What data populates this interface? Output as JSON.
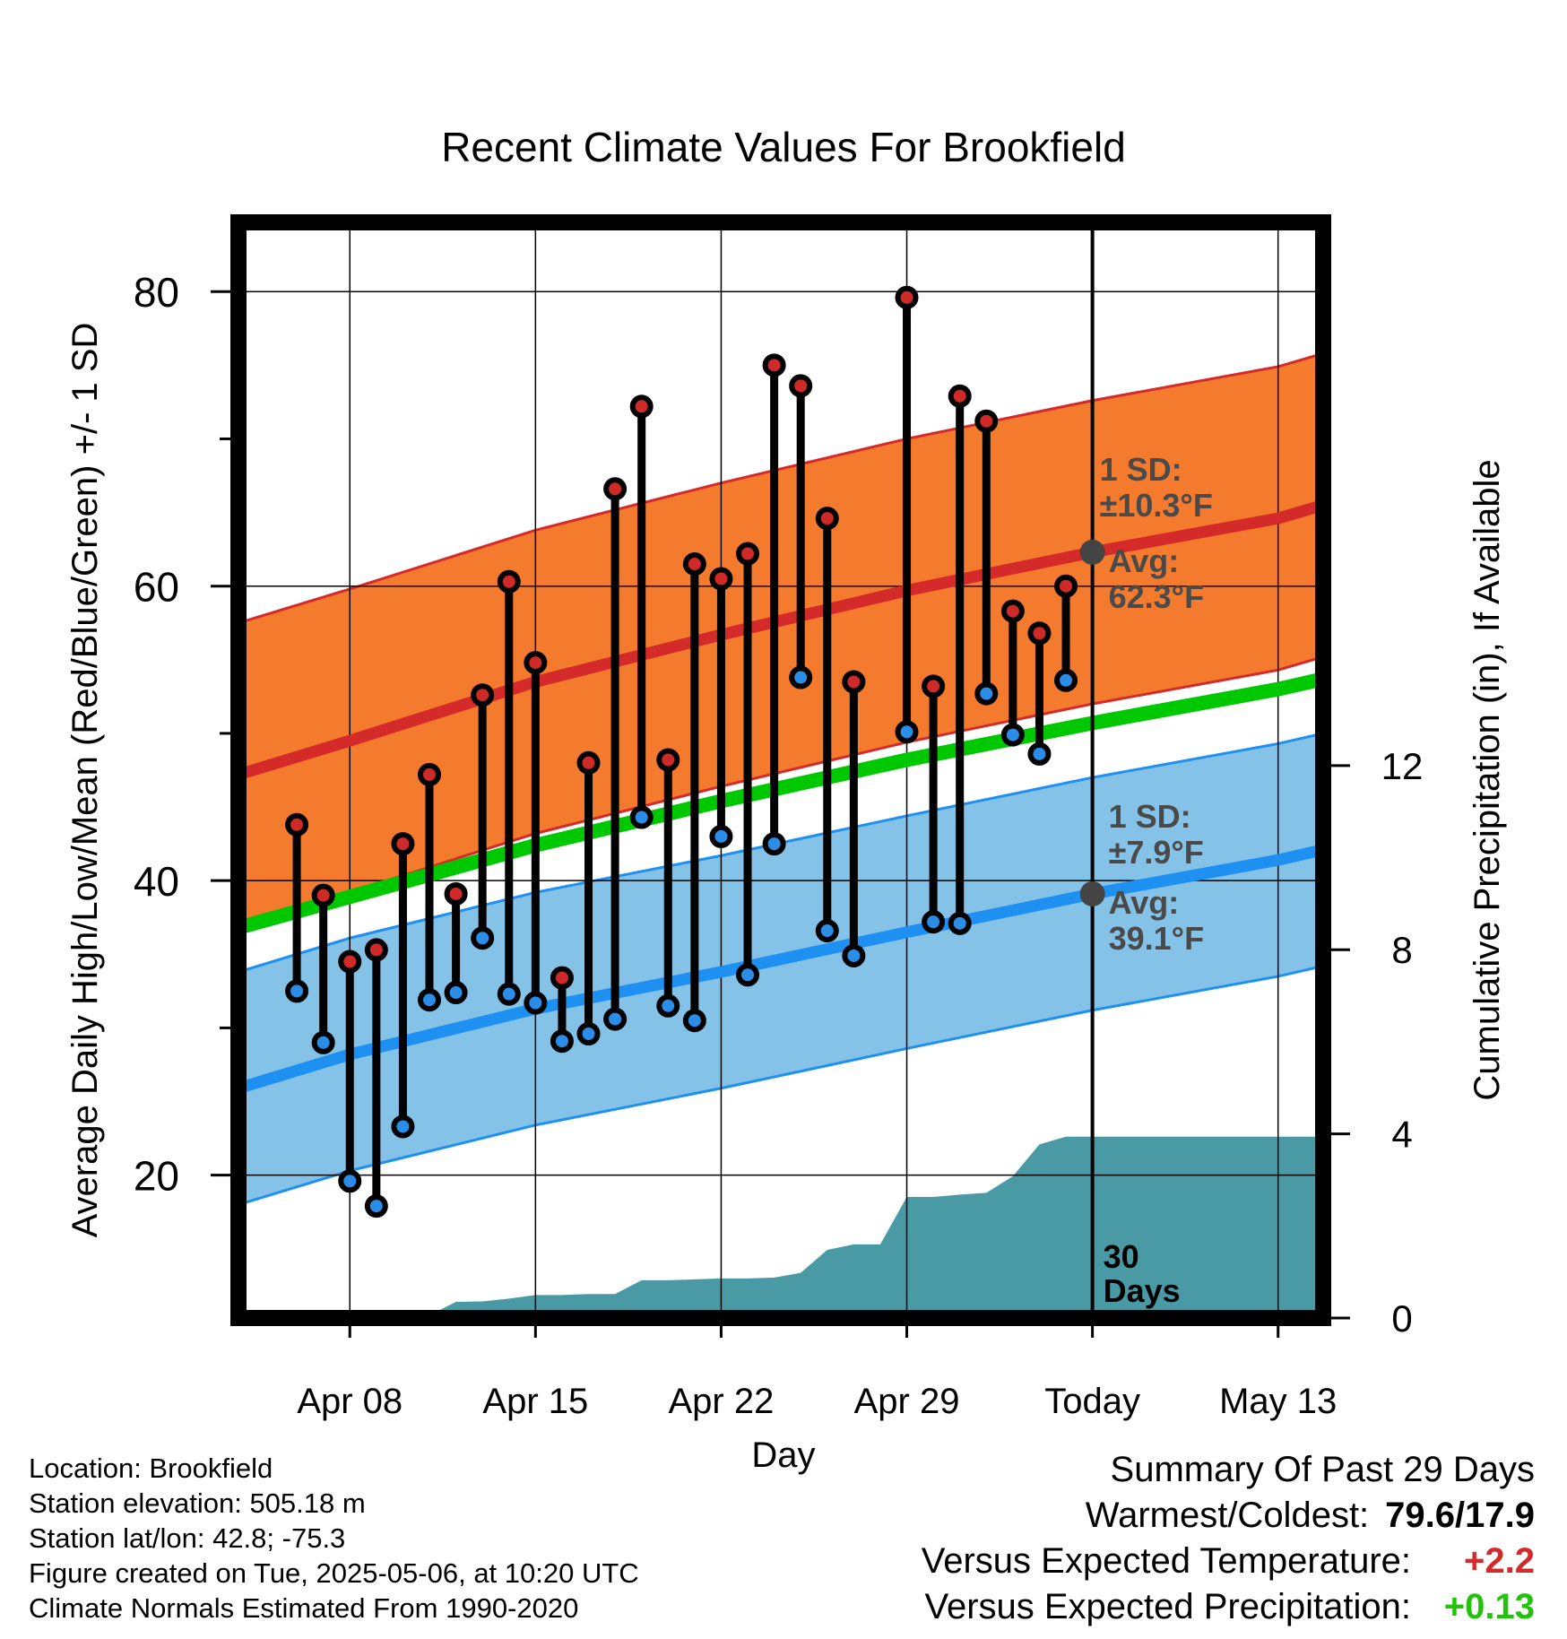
{
  "chart_data": {
    "type": "line",
    "title": "Recent Climate Values For Brookfield",
    "xlabel": "Day",
    "ylabel_left": "Average Daily High/Low/Mean (Red/Blue/Green) +/- 1 SD",
    "ylabel_right": "Cumulative Precipitation (in), If Available",
    "x_ticks": [
      "Apr 08",
      "Apr 15",
      "Apr 22",
      "Apr 29",
      "Today",
      "May 13"
    ],
    "y_left_ticks": [
      "20",
      "40",
      "60",
      "80"
    ],
    "y_right_ticks": [
      "0",
      "4",
      "8",
      "12"
    ],
    "ylim_left": [
      10.3,
      84.7
    ],
    "ylim_right": [
      0,
      23.8
    ],
    "x_range_days": [
      -32.2,
      8.7
    ],
    "x_tick_days": [
      -28,
      -21,
      -14,
      -7,
      0,
      7
    ],
    "today_marker_label": "30\nDays",
    "normals": {
      "x_days": [
        -32.2,
        -28,
        -21,
        -14,
        -7,
        0,
        7,
        8.7
      ],
      "avg_high": [
        47.2,
        49.5,
        53.5,
        56.7,
        59.7,
        62.3,
        64.6,
        65.5
      ],
      "avg_low": [
        25.9,
        28.2,
        31.3,
        33.8,
        36.5,
        39.1,
        41.4,
        42.1
      ],
      "avg_mean": [
        36.8,
        38.9,
        42.4,
        45.4,
        48.2,
        50.7,
        53.0,
        53.7
      ],
      "sd_high": 10.3,
      "sd_low": 7.9
    },
    "annotations": {
      "high_sd_label": "1 SD:",
      "high_sd_value": "±10.3°F",
      "high_avg_label": "Avg:",
      "high_avg_value": "62.3°F",
      "low_sd_label": "1 SD:",
      "low_sd_value": "±7.9°F",
      "low_avg_label": "Avg:",
      "low_avg_value": "39.1°F"
    },
    "daily": {
      "x_days": [
        -30,
        -29,
        -28,
        -27,
        -26,
        -25,
        -24,
        -23,
        -22,
        -21,
        -20,
        -19,
        -18,
        -17,
        -16,
        -15,
        -14,
        -13,
        -12,
        -11,
        -10,
        -9,
        -8,
        -7,
        -6,
        -5,
        -4,
        -3,
        -2,
        -1
      ],
      "high": [
        43.8,
        39.0,
        34.5,
        35.3,
        42.5,
        47.2,
        39.1,
        52.6,
        60.3,
        54.8,
        33.4,
        48.0,
        66.6,
        72.2,
        48.2,
        61.5,
        60.5,
        62.2,
        75.0,
        73.6,
        64.6,
        53.5,
        null,
        79.6,
        53.2,
        72.9,
        71.2,
        58.3,
        56.8,
        60.0
      ],
      "low": [
        32.5,
        29.0,
        19.6,
        17.9,
        23.3,
        31.9,
        32.4,
        36.1,
        32.3,
        31.7,
        29.1,
        29.6,
        30.6,
        44.3,
        31.5,
        30.5,
        43.0,
        33.6,
        42.5,
        53.8,
        36.6,
        34.9,
        null,
        50.1,
        37.2,
        37.1,
        52.7,
        49.9,
        48.6,
        53.6
      ]
    },
    "precip": {
      "x_days": [
        -32.2,
        -27,
        -26,
        -25,
        -24,
        -23,
        -22,
        -21,
        -20,
        -19,
        -18,
        -17,
        -16,
        -15,
        -14,
        -13,
        -12,
        -11,
        -10,
        -9,
        -8,
        -7,
        -6,
        -5,
        -4,
        -3,
        -2,
        -1,
        0,
        8.7
      ],
      "cum": [
        0,
        0,
        0,
        0.06,
        0.35,
        0.36,
        0.42,
        0.5,
        0.5,
        0.52,
        0.52,
        0.82,
        0.82,
        0.84,
        0.86,
        0.86,
        0.88,
        0.98,
        1.48,
        1.6,
        1.6,
        2.63,
        2.63,
        2.68,
        2.72,
        3.08,
        3.77,
        3.94,
        3.94,
        3.94
      ]
    }
  },
  "footer": {
    "location": "Location: Brookfield",
    "elevation": "Station elevation: 505.18 m",
    "latlon": "Station lat/lon: 42.8; -75.3",
    "created": "Figure created on Tue, 2025-05-06, at 10:20 UTC",
    "normals": "Climate Normals Estimated From 1990-2020"
  },
  "summary": {
    "title": "Summary Of Past 29 Days",
    "warmest_coldest_label": "Warmest/Coldest:",
    "warmest_coldest_value": "79.6/17.9",
    "temp_label": "Versus Expected Temperature:",
    "temp_value": "+2.2",
    "precip_label": "Versus Expected Precipitation:",
    "precip_value": "+0.13",
    "temp_color": "#d42a2a",
    "precip_color": "#22c40a"
  },
  "colors": {
    "high_band": "#f47a2e",
    "high_line": "#d42a2a",
    "low_band": "#84c2e8",
    "low_line": "#1e90f2",
    "mean_line": "#00c800",
    "precip_fill": "#4a9aa5",
    "high_dot": "#d02a28",
    "low_dot": "#2a8ee8",
    "annotation": "#4a4a4a",
    "today_dot": "#444444"
  }
}
